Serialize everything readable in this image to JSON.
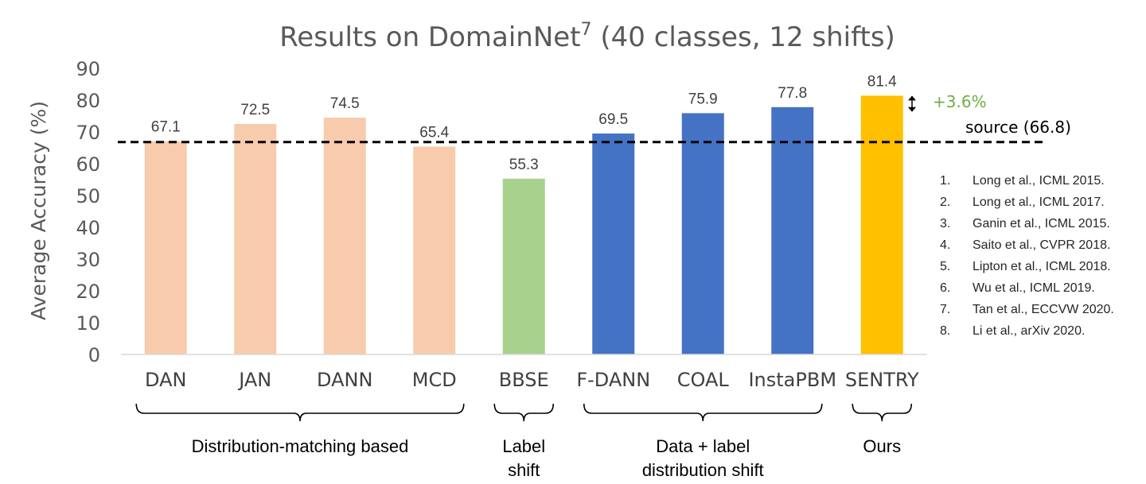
{
  "chart_data": {
    "type": "bar",
    "title": "Results on DomainNet",
    "title_superscript": "7",
    "title_suffix": " (40 classes, 12 shifts)",
    "ylabel": "Average Accuracy (%)",
    "xlabel": "",
    "ylim": [
      0,
      90
    ],
    "yticks": [
      0,
      10,
      20,
      30,
      40,
      50,
      60,
      70,
      80,
      90
    ],
    "grid": false,
    "categories": [
      "DAN",
      "JAN",
      "DANN",
      "MCD",
      "BBSE",
      "F-DANN",
      "COAL",
      "InstaPBM",
      "SENTRY"
    ],
    "values": [
      67.1,
      72.5,
      74.5,
      65.4,
      55.3,
      69.5,
      75.9,
      77.8,
      81.4
    ],
    "data_labels": [
      "67.1",
      "72.5",
      "74.5",
      "65.4",
      "55.3",
      "69.5",
      "75.9",
      "77.8",
      "81.4"
    ],
    "bar_colors": [
      "#f8cbad",
      "#f8cbad",
      "#f8cbad",
      "#f8cbad",
      "#a9d18e",
      "#4472c4",
      "#4472c4",
      "#4472c4",
      "#ffc000"
    ],
    "reference_line": {
      "value": 66.8,
      "label": "source (66.8)",
      "style": "dashed",
      "color": "#000000"
    },
    "improvement": {
      "label": "+3.6%",
      "color": "#70ad47"
    },
    "groups": [
      {
        "lines": [
          "Distribution-matching based"
        ],
        "from": 0,
        "to": 3
      },
      {
        "lines": [
          "Label",
          "shift"
        ],
        "from": 4,
        "to": 4
      },
      {
        "lines": [
          "Data + label",
          "distribution shift"
        ],
        "from": 5,
        "to": 7
      },
      {
        "lines": [
          "Ours"
        ],
        "from": 8,
        "to": 8
      }
    ]
  },
  "references": [
    {
      "num": "1.",
      "text": "Long et al.,  ICML 2015."
    },
    {
      "num": "2.",
      "text": "Long et al.,  ICML 2017."
    },
    {
      "num": "3.",
      "text": "Ganin et al., ICML 2015."
    },
    {
      "num": "4.",
      "text": "Saito et al., CVPR 2018."
    },
    {
      "num": "5.",
      "text": "Lipton et al., ICML 2018."
    },
    {
      "num": "6.",
      "text": "Wu et al., ICML 2019."
    },
    {
      "num": "7.",
      "text": "Tan et al., ECCVW 2020."
    },
    {
      "num": "8.",
      "text": "Li et al., arXiv 2020."
    }
  ],
  "colors": {
    "axis_text": "#595959",
    "category_text": "#404040"
  }
}
